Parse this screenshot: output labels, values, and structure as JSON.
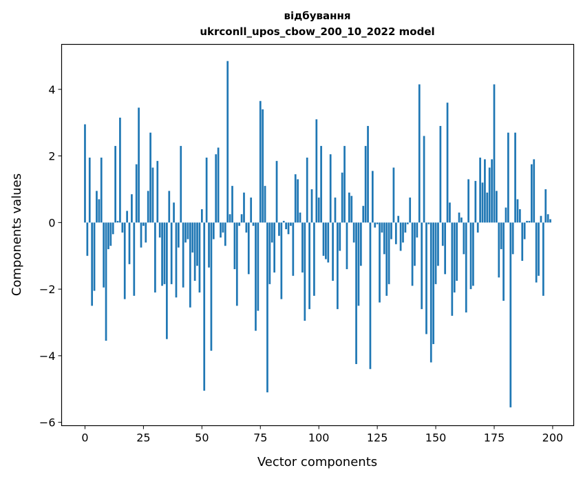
{
  "chart_data": {
    "type": "bar",
    "title": "відбування",
    "subtitle": "ukrconll_upos_cbow_200_10_2022 model",
    "xlabel": "Vector components",
    "ylabel": "Components values",
    "xlim": [
      -10,
      209
    ],
    "ylim": [
      -6.1,
      5.35
    ],
    "xticks": [
      0,
      25,
      50,
      75,
      100,
      125,
      150,
      175,
      200
    ],
    "yticks": [
      -6,
      -4,
      -2,
      0,
      2,
      4
    ],
    "ytick_labels": [
      "−6",
      "−4",
      "−2",
      "0",
      "2",
      "4"
    ],
    "grid": false,
    "bar_color": "#1f77b4",
    "x": [
      0,
      1,
      2,
      3,
      4,
      5,
      6,
      7,
      8,
      9,
      10,
      11,
      12,
      13,
      14,
      15,
      16,
      17,
      18,
      19,
      20,
      21,
      22,
      23,
      24,
      25,
      26,
      27,
      28,
      29,
      30,
      31,
      32,
      33,
      34,
      35,
      36,
      37,
      38,
      39,
      40,
      41,
      42,
      43,
      44,
      45,
      46,
      47,
      48,
      49,
      50,
      51,
      52,
      53,
      54,
      55,
      56,
      57,
      58,
      59,
      60,
      61,
      62,
      63,
      64,
      65,
      66,
      67,
      68,
      69,
      70,
      71,
      72,
      73,
      74,
      75,
      76,
      77,
      78,
      79,
      80,
      81,
      82,
      83,
      84,
      85,
      86,
      87,
      88,
      89,
      90,
      91,
      92,
      93,
      94,
      95,
      96,
      97,
      98,
      99,
      100,
      101,
      102,
      103,
      104,
      105,
      106,
      107,
      108,
      109,
      110,
      111,
      112,
      113,
      114,
      115,
      116,
      117,
      118,
      119,
      120,
      121,
      122,
      123,
      124,
      125,
      126,
      127,
      128,
      129,
      130,
      131,
      132,
      133,
      134,
      135,
      136,
      137,
      138,
      139,
      140,
      141,
      142,
      143,
      144,
      145,
      146,
      147,
      148,
      149,
      150,
      151,
      152,
      153,
      154,
      155,
      156,
      157,
      158,
      159,
      160,
      161,
      162,
      163,
      164,
      165,
      166,
      167,
      168,
      169,
      170,
      171,
      172,
      173,
      174,
      175,
      176,
      177,
      178,
      179,
      180,
      181,
      182,
      183,
      184,
      185,
      186,
      187,
      188,
      189,
      190,
      191,
      192,
      193,
      194,
      195,
      196,
      197,
      198,
      199
    ],
    "values": [
      2.95,
      -1.0,
      1.95,
      -2.5,
      -2.05,
      0.95,
      0.7,
      1.95,
      -1.95,
      -3.55,
      -0.8,
      -0.7,
      -0.35,
      2.3,
      0.05,
      3.15,
      -0.3,
      -2.3,
      0.35,
      -1.25,
      0.85,
      -2.2,
      1.75,
      3.45,
      -0.75,
      -0.1,
      -0.6,
      0.95,
      2.7,
      1.65,
      -2.1,
      1.85,
      -0.45,
      -1.9,
      -1.85,
      -3.5,
      0.95,
      -1.85,
      0.6,
      -2.25,
      -0.75,
      2.3,
      -1.95,
      -0.6,
      -0.5,
      -2.55,
      -0.9,
      -1.75,
      -1.3,
      -2.1,
      0.4,
      -5.05,
      1.95,
      -1.35,
      -3.85,
      -0.5,
      2.05,
      2.25,
      -0.45,
      -0.3,
      -0.7,
      4.85,
      0.25,
      1.1,
      -1.4,
      -2.5,
      -0.1,
      0.25,
      0.9,
      -0.3,
      -1.55,
      0.75,
      -0.1,
      -3.25,
      -2.65,
      3.65,
      3.4,
      1.1,
      -5.1,
      -1.85,
      -0.6,
      -1.5,
      1.85,
      -0.4,
      -2.3,
      0.05,
      -0.2,
      -0.35,
      -0.1,
      -1.6,
      1.45,
      1.3,
      0.3,
      -1.5,
      -2.95,
      1.95,
      -2.6,
      1.0,
      -2.2,
      3.1,
      0.75,
      2.3,
      -1.0,
      -1.1,
      -1.2,
      2.05,
      -1.75,
      0.75,
      -2.6,
      -0.85,
      1.5,
      2.3,
      -1.4,
      0.9,
      0.8,
      -0.6,
      -4.25,
      -2.5,
      -1.3,
      0.5,
      2.3,
      2.9,
      -4.4,
      1.55,
      -0.15,
      -0.05,
      -2.4,
      -0.3,
      -0.95,
      -2.2,
      -1.85,
      -0.5,
      1.65,
      -0.65,
      0.2,
      -0.85,
      -0.6,
      -0.3,
      -0.05,
      0.75,
      -1.9,
      -1.3,
      -0.45,
      4.15,
      -2.6,
      2.6,
      -3.35,
      -0.05,
      -4.2,
      -3.65,
      -1.85,
      -1.3,
      2.9,
      -0.7,
      -1.55,
      3.6,
      0.6,
      -2.8,
      -2.1,
      -1.75,
      0.3,
      0.15,
      -0.95,
      -2.7,
      1.3,
      -2.0,
      -1.9,
      1.25,
      -0.3,
      1.95,
      1.2,
      1.9,
      0.9,
      1.65,
      1.9,
      4.15,
      0.95,
      -1.65,
      -0.8,
      -2.35,
      0.45,
      2.7,
      -5.55,
      -0.95,
      2.7,
      0.7,
      0.4,
      -1.15,
      -0.5,
      0.05,
      0.05,
      1.75,
      1.9,
      -1.8,
      -1.6,
      0.2,
      -2.2,
      1.0,
      0.25,
      0.1
    ]
  }
}
